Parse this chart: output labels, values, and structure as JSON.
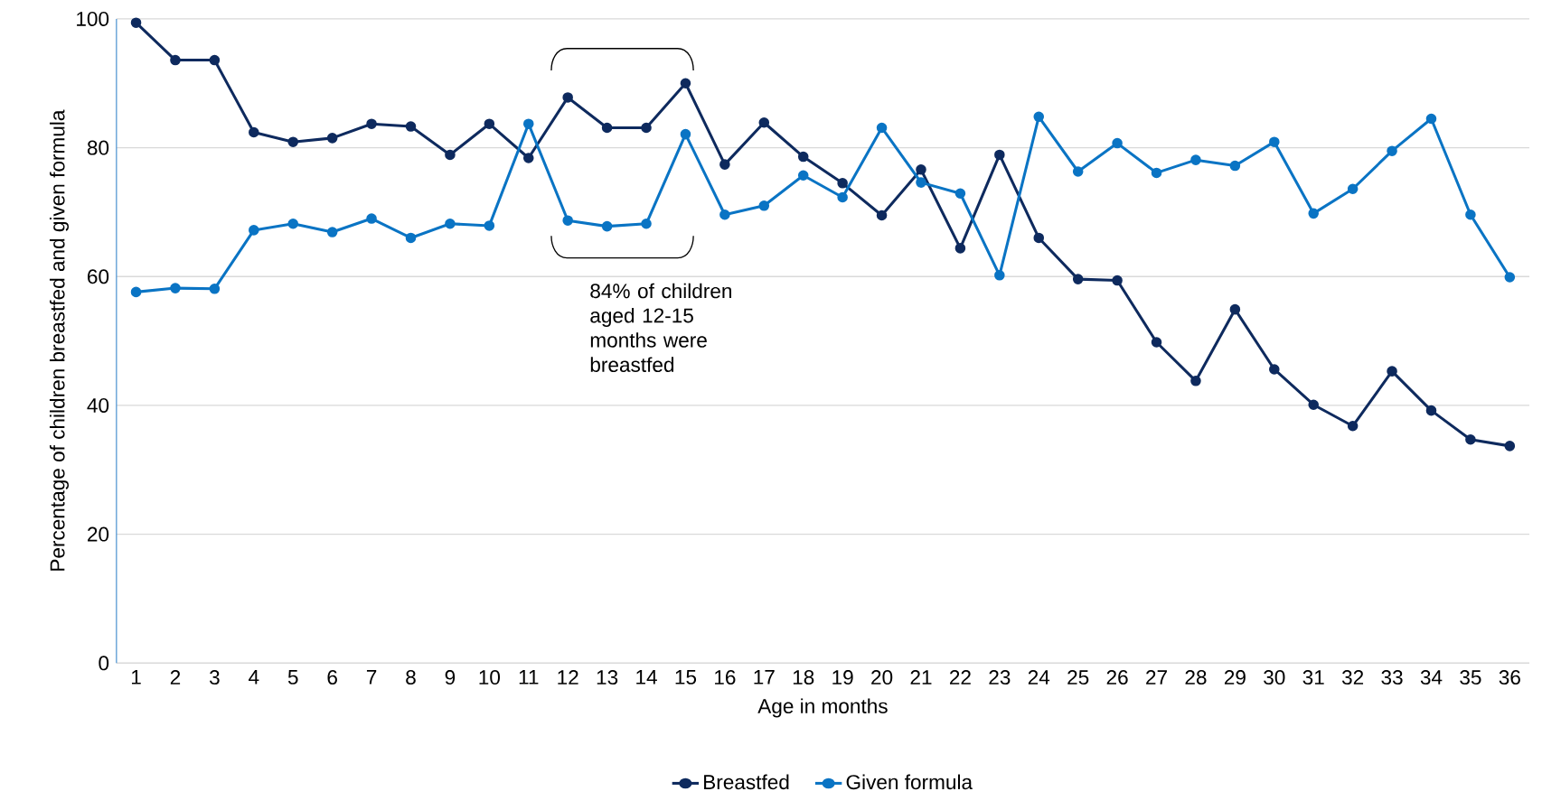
{
  "chart_data": {
    "type": "line",
    "xlabel": "Age in months",
    "ylabel": "Percentage of children breastfed and given formula",
    "categories": [
      "1",
      "2",
      "3",
      "4",
      "5",
      "6",
      "7",
      "8",
      "9",
      "10",
      "11",
      "12",
      "13",
      "14",
      "15",
      "16",
      "17",
      "18",
      "19",
      "20",
      "21",
      "22",
      "23",
      "24",
      "25",
      "26",
      "27",
      "28",
      "29",
      "30",
      "31",
      "32",
      "33",
      "34",
      "35",
      "36"
    ],
    "series": [
      {
        "name": "Breastfed",
        "color": "#0e2a5e",
        "values": [
          99.4,
          93.6,
          93.6,
          82.4,
          80.9,
          81.5,
          83.7,
          83.3,
          78.9,
          83.7,
          78.4,
          87.8,
          83.1,
          83.1,
          90.0,
          77.4,
          83.9,
          78.6,
          74.5,
          69.5,
          76.6,
          64.4,
          78.9,
          66.0,
          59.6,
          59.4,
          49.8,
          43.8,
          54.9,
          45.6,
          40.1,
          36.8,
          45.3,
          39.2,
          34.7,
          33.7
        ]
      },
      {
        "name": "Given formula",
        "color": "#0a74c4",
        "values": [
          57.6,
          58.2,
          58.1,
          67.2,
          68.2,
          66.9,
          69.0,
          66.0,
          68.2,
          67.9,
          83.7,
          68.7,
          67.8,
          68.2,
          82.1,
          69.6,
          71.0,
          75.7,
          72.3,
          83.1,
          74.6,
          72.9,
          60.2,
          84.8,
          76.3,
          80.7,
          76.1,
          78.1,
          77.2,
          80.9,
          69.8,
          73.6,
          79.5,
          84.5,
          69.6,
          59.9
        ]
      }
    ],
    "ylim": [
      0,
      100
    ],
    "yticks": [
      0,
      20,
      40,
      60,
      80,
      100
    ],
    "grid": "y",
    "legend": "bottom",
    "marker": "circle",
    "line_style": "solid",
    "annotations": [
      "84% of children aged 12-15 months were breastfed"
    ]
  }
}
